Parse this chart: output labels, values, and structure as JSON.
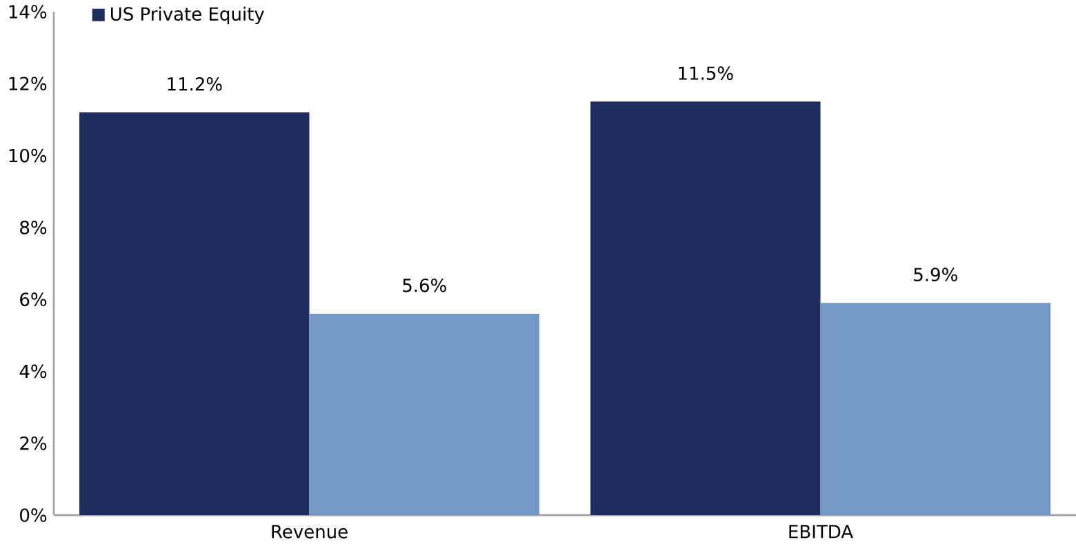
{
  "chart_data": {
    "type": "bar",
    "categories": [
      "Revenue",
      "EBITDA"
    ],
    "series": [
      {
        "name": "US Private Equity",
        "color": "#1f2d5e",
        "values": [
          11.2,
          11.5
        ],
        "value_labels": [
          "11.2%",
          "11.5%"
        ]
      },
      {
        "color": "#7398c6",
        "values": [
          5.6,
          5.9
        ],
        "value_labels": [
          "5.6%",
          "5.9%"
        ]
      }
    ],
    "ylim": [
      0,
      14
    ],
    "yticks": [
      {
        "value": 0,
        "label": "0%"
      },
      {
        "value": 2,
        "label": "2%"
      },
      {
        "value": 4,
        "label": "4%"
      },
      {
        "value": 6,
        "label": "6%"
      },
      {
        "value": 8,
        "label": "8%"
      },
      {
        "value": 10,
        "label": "10%"
      },
      {
        "value": 12,
        "label": "12%"
      },
      {
        "value": 14,
        "label": "14%"
      }
    ],
    "grid": false,
    "legend": "top left"
  }
}
